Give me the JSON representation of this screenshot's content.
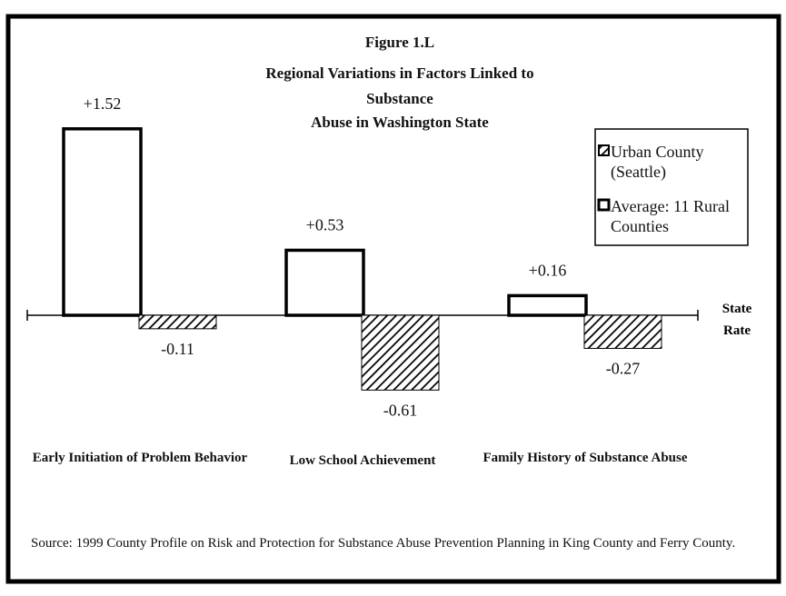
{
  "chart_data": {
    "type": "bar",
    "title": "Figure 1.L",
    "subtitle": [
      "Regional Variations in Factors Linked to",
      "Substance",
      "Abuse in Washington State"
    ],
    "categories": [
      "Early Initiation of Problem Behavior",
      "Low School Achievement",
      "Family History of Substance Abuse"
    ],
    "series": [
      {
        "name": "Average: 11 Rural Counties",
        "color": "#ffffff",
        "values": [
          1.52,
          0.53,
          0.16
        ],
        "value_labels": [
          "+1.52",
          "+0.53",
          "+0.16"
        ]
      },
      {
        "name": "Urban County (Seattle)",
        "color": "#000000",
        "hatch": true,
        "values": [
          -0.11,
          -0.61,
          -0.27
        ]
      }
    ],
    "legend_order": [
      1,
      0
    ],
    "legend": "upper right",
    "annotation": "State Rate",
    "source": "Source:  1999 County Profile on Risk and Protection for Substance Abuse Prevention Planning in King County and Ferry County."
  }
}
